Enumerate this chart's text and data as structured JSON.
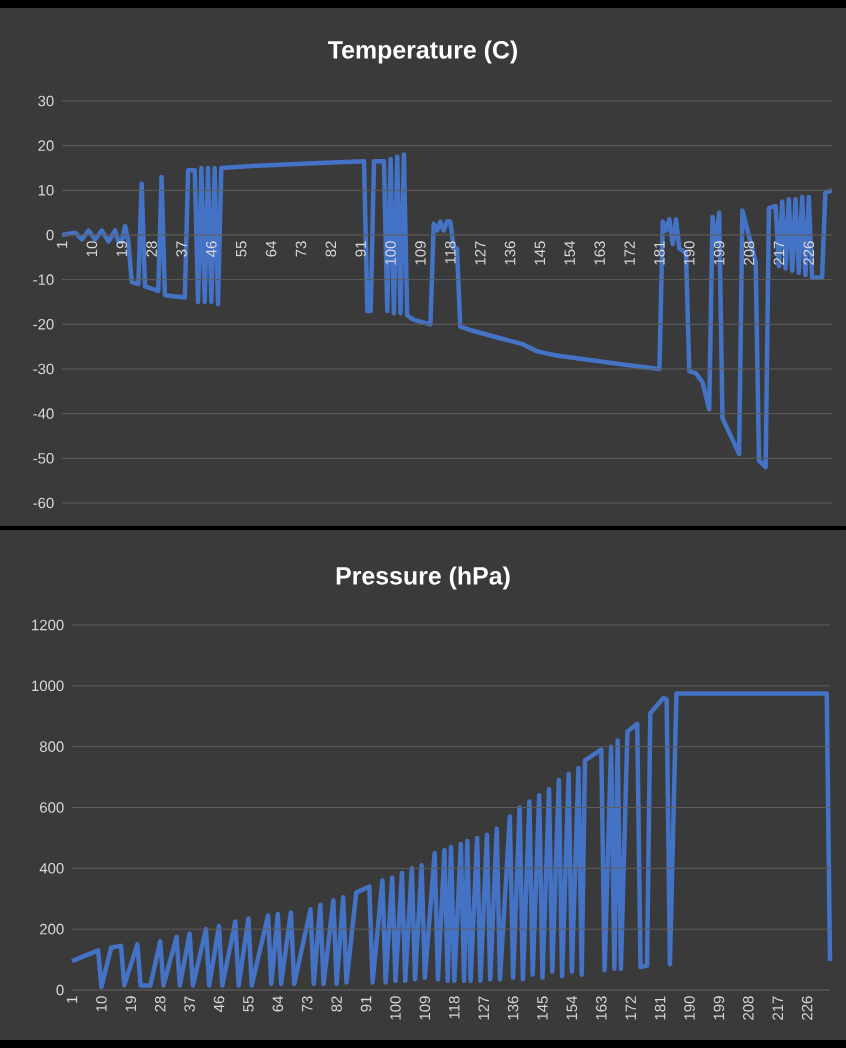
{
  "chart_data": [
    {
      "type": "line",
      "title": "Temperature (C)",
      "color": "#4472c4",
      "grid": "y",
      "x": [
        1,
        5,
        7,
        9,
        11,
        13,
        15,
        17,
        18,
        19,
        20,
        21,
        22,
        24,
        25,
        26,
        30,
        31,
        32,
        38,
        39,
        41,
        42,
        43,
        44,
        45,
        46,
        47,
        48,
        49,
        60,
        75,
        92,
        93,
        94,
        95,
        98,
        99,
        100,
        101,
        102,
        103,
        104,
        105,
        107,
        112,
        113,
        114,
        115,
        116,
        117,
        118,
        119,
        120,
        121,
        125,
        135,
        140,
        144,
        150,
        160,
        170,
        181,
        182,
        183,
        184,
        185,
        186,
        187,
        189,
        190,
        192,
        194,
        196,
        197,
        198,
        199,
        200,
        205,
        206,
        210,
        211,
        213,
        214,
        216,
        217,
        218,
        219,
        220,
        221,
        222,
        223,
        224,
        225,
        226,
        227,
        230,
        231,
        233
      ],
      "values": [
        0,
        0.5,
        -1,
        1,
        -1,
        1,
        -1.5,
        1,
        -1.5,
        -1.5,
        2,
        -1.5,
        -10.5,
        -11,
        11.5,
        -11.5,
        -12.5,
        13,
        -13.5,
        -14,
        14.5,
        14.5,
        -15,
        15,
        -15,
        15,
        -15,
        15,
        -15.5,
        15,
        15.5,
        16,
        16.5,
        -17,
        -17,
        16.5,
        16.5,
        -17,
        17,
        -17.5,
        17.5,
        -17.5,
        18,
        -18,
        -19,
        -20,
        2.5,
        1,
        3,
        1,
        3,
        3,
        -3,
        -3,
        -20.5,
        -21.5,
        -23.5,
        -24.5,
        -26,
        -27,
        -28,
        -29,
        -30,
        3,
        1,
        3.5,
        -2,
        3.5,
        -3,
        -4,
        -30.5,
        -31,
        -33,
        -39,
        4,
        -2,
        5,
        -41,
        -49,
        5.5,
        -6,
        -50.5,
        -52,
        6,
        6.5,
        -7,
        7.5,
        -7.5,
        8,
        -8,
        8,
        -8.5,
        8.5,
        -9,
        8.5,
        -9.5,
        -9.5,
        9.5,
        10
      ],
      "xlim": [
        1,
        233
      ],
      "ylim": [
        -60,
        30
      ],
      "xticks": [
        1,
        10,
        19,
        28,
        37,
        46,
        55,
        64,
        73,
        82,
        91,
        100,
        109,
        118,
        127,
        136,
        145,
        154,
        163,
        172,
        181,
        190,
        199,
        208,
        217,
        226
      ],
      "yticks": [
        -60,
        -50,
        -40,
        -30,
        -20,
        -10,
        0,
        10,
        20,
        30
      ]
    },
    {
      "type": "line",
      "title": "Pressure (hPa)",
      "color": "#4472c4",
      "grid": "y",
      "x": [
        1,
        9,
        10,
        13,
        16,
        17,
        21,
        22,
        25,
        28,
        29,
        33,
        34,
        37,
        38,
        42,
        43,
        46,
        47,
        51,
        52,
        55,
        56,
        61,
        62,
        64,
        65,
        68,
        69,
        74,
        75,
        77,
        78,
        81,
        82,
        84,
        85,
        88,
        92,
        93,
        96,
        97,
        99,
        100,
        102,
        103,
        105,
        106,
        108,
        109,
        112,
        113,
        115,
        116,
        117,
        118,
        120,
        121,
        122,
        123,
        125,
        126,
        128,
        129,
        131,
        132,
        135,
        136,
        138,
        139,
        141,
        142,
        144,
        145,
        147,
        148,
        150,
        151,
        153,
        154,
        156,
        157,
        158,
        163,
        164,
        166,
        167,
        168,
        169,
        171,
        174,
        175,
        177,
        178,
        182,
        183,
        184,
        186,
        232,
        233
      ],
      "values": [
        95,
        130,
        10,
        140,
        145,
        15,
        150,
        15,
        15,
        160,
        15,
        175,
        15,
        185,
        15,
        200,
        15,
        210,
        15,
        225,
        15,
        235,
        15,
        245,
        20,
        250,
        20,
        255,
        20,
        265,
        20,
        280,
        20,
        295,
        20,
        305,
        25,
        320,
        340,
        25,
        360,
        25,
        370,
        30,
        385,
        30,
        400,
        35,
        410,
        40,
        450,
        35,
        460,
        30,
        470,
        30,
        480,
        30,
        490,
        30,
        500,
        30,
        510,
        35,
        530,
        35,
        570,
        40,
        600,
        35,
        620,
        50,
        640,
        40,
        660,
        60,
        690,
        45,
        710,
        60,
        730,
        50,
        755,
        790,
        65,
        800,
        70,
        820,
        70,
        850,
        875,
        75,
        80,
        910,
        960,
        955,
        85,
        975,
        975,
        95
      ],
      "xlim": [
        1,
        233
      ],
      "ylim": [
        0,
        1200
      ],
      "xticks": [
        1,
        10,
        19,
        28,
        37,
        46,
        55,
        64,
        73,
        82,
        91,
        100,
        109,
        118,
        127,
        136,
        145,
        154,
        163,
        172,
        181,
        190,
        199,
        208,
        217,
        226
      ],
      "yticks": [
        0,
        200,
        400,
        600,
        800,
        1000,
        1200
      ]
    }
  ]
}
